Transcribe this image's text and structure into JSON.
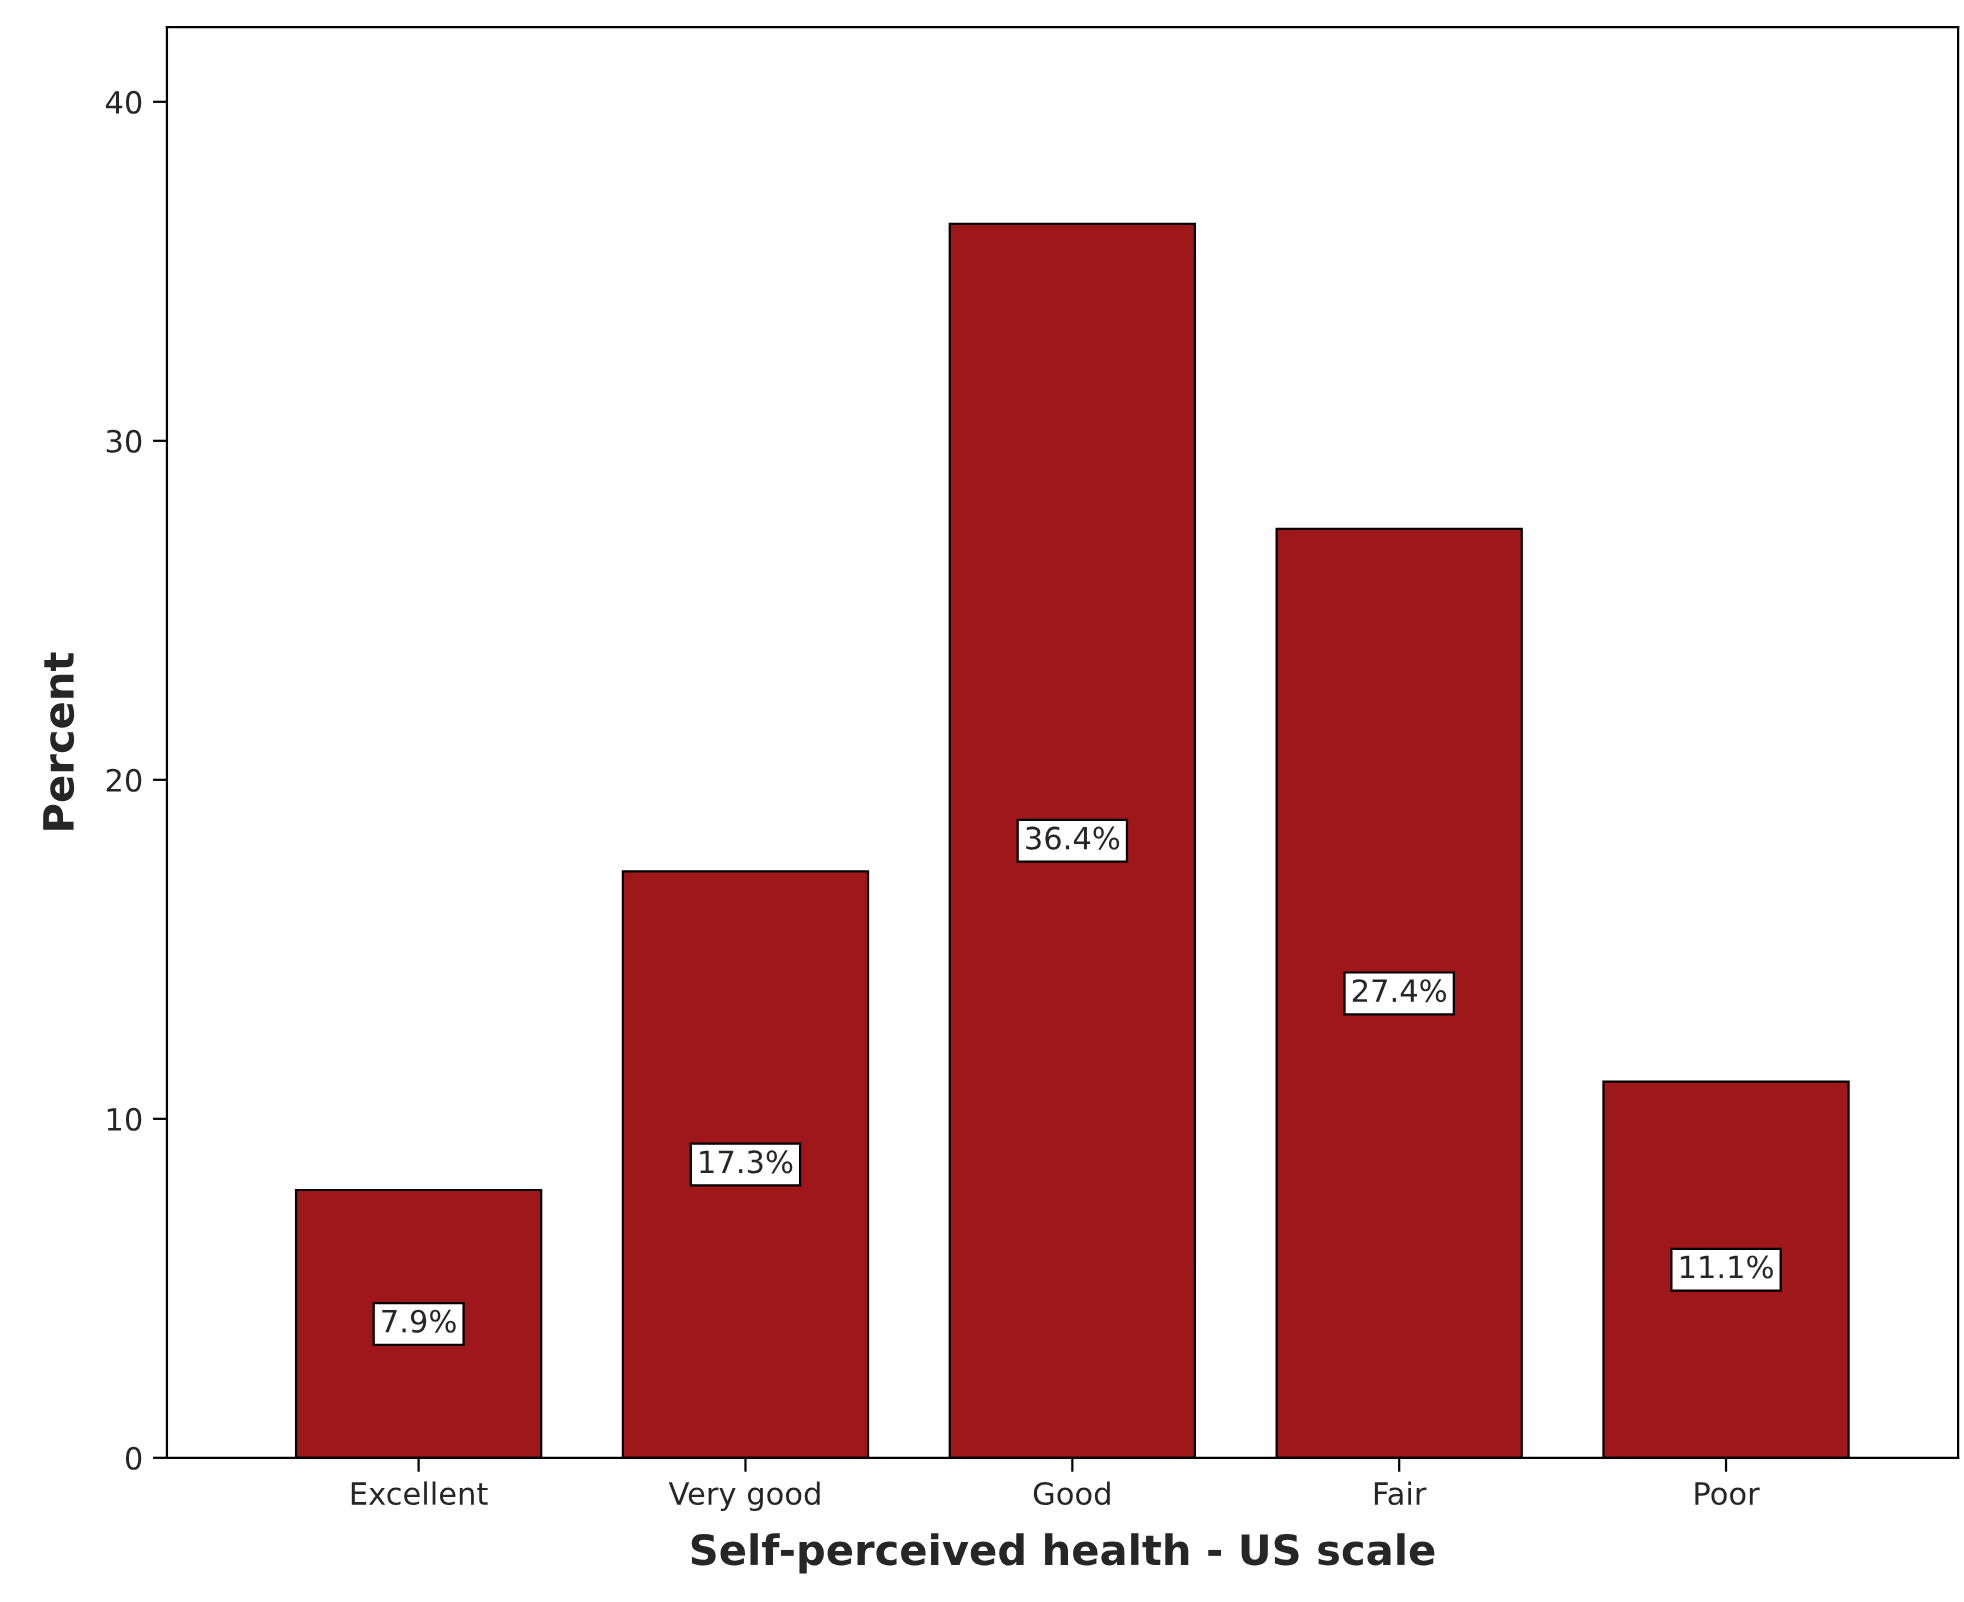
{
  "chart_data": {
    "type": "bar",
    "xlabel": "Self-perceived health - US scale",
    "ylabel": "Percent",
    "categories": [
      "Excellent",
      "Very good",
      "Good",
      "Fair",
      "Poor"
    ],
    "values": [
      7.9,
      17.3,
      36.4,
      27.4,
      11.1
    ],
    "value_labels": [
      "7.9%",
      "17.3%",
      "36.4%",
      "27.4%",
      "11.1%"
    ],
    "color": "#9e171a",
    "ylim": [
      0,
      42.2
    ],
    "yticks": [
      0,
      10,
      20,
      30,
      40
    ],
    "grid": false
  }
}
